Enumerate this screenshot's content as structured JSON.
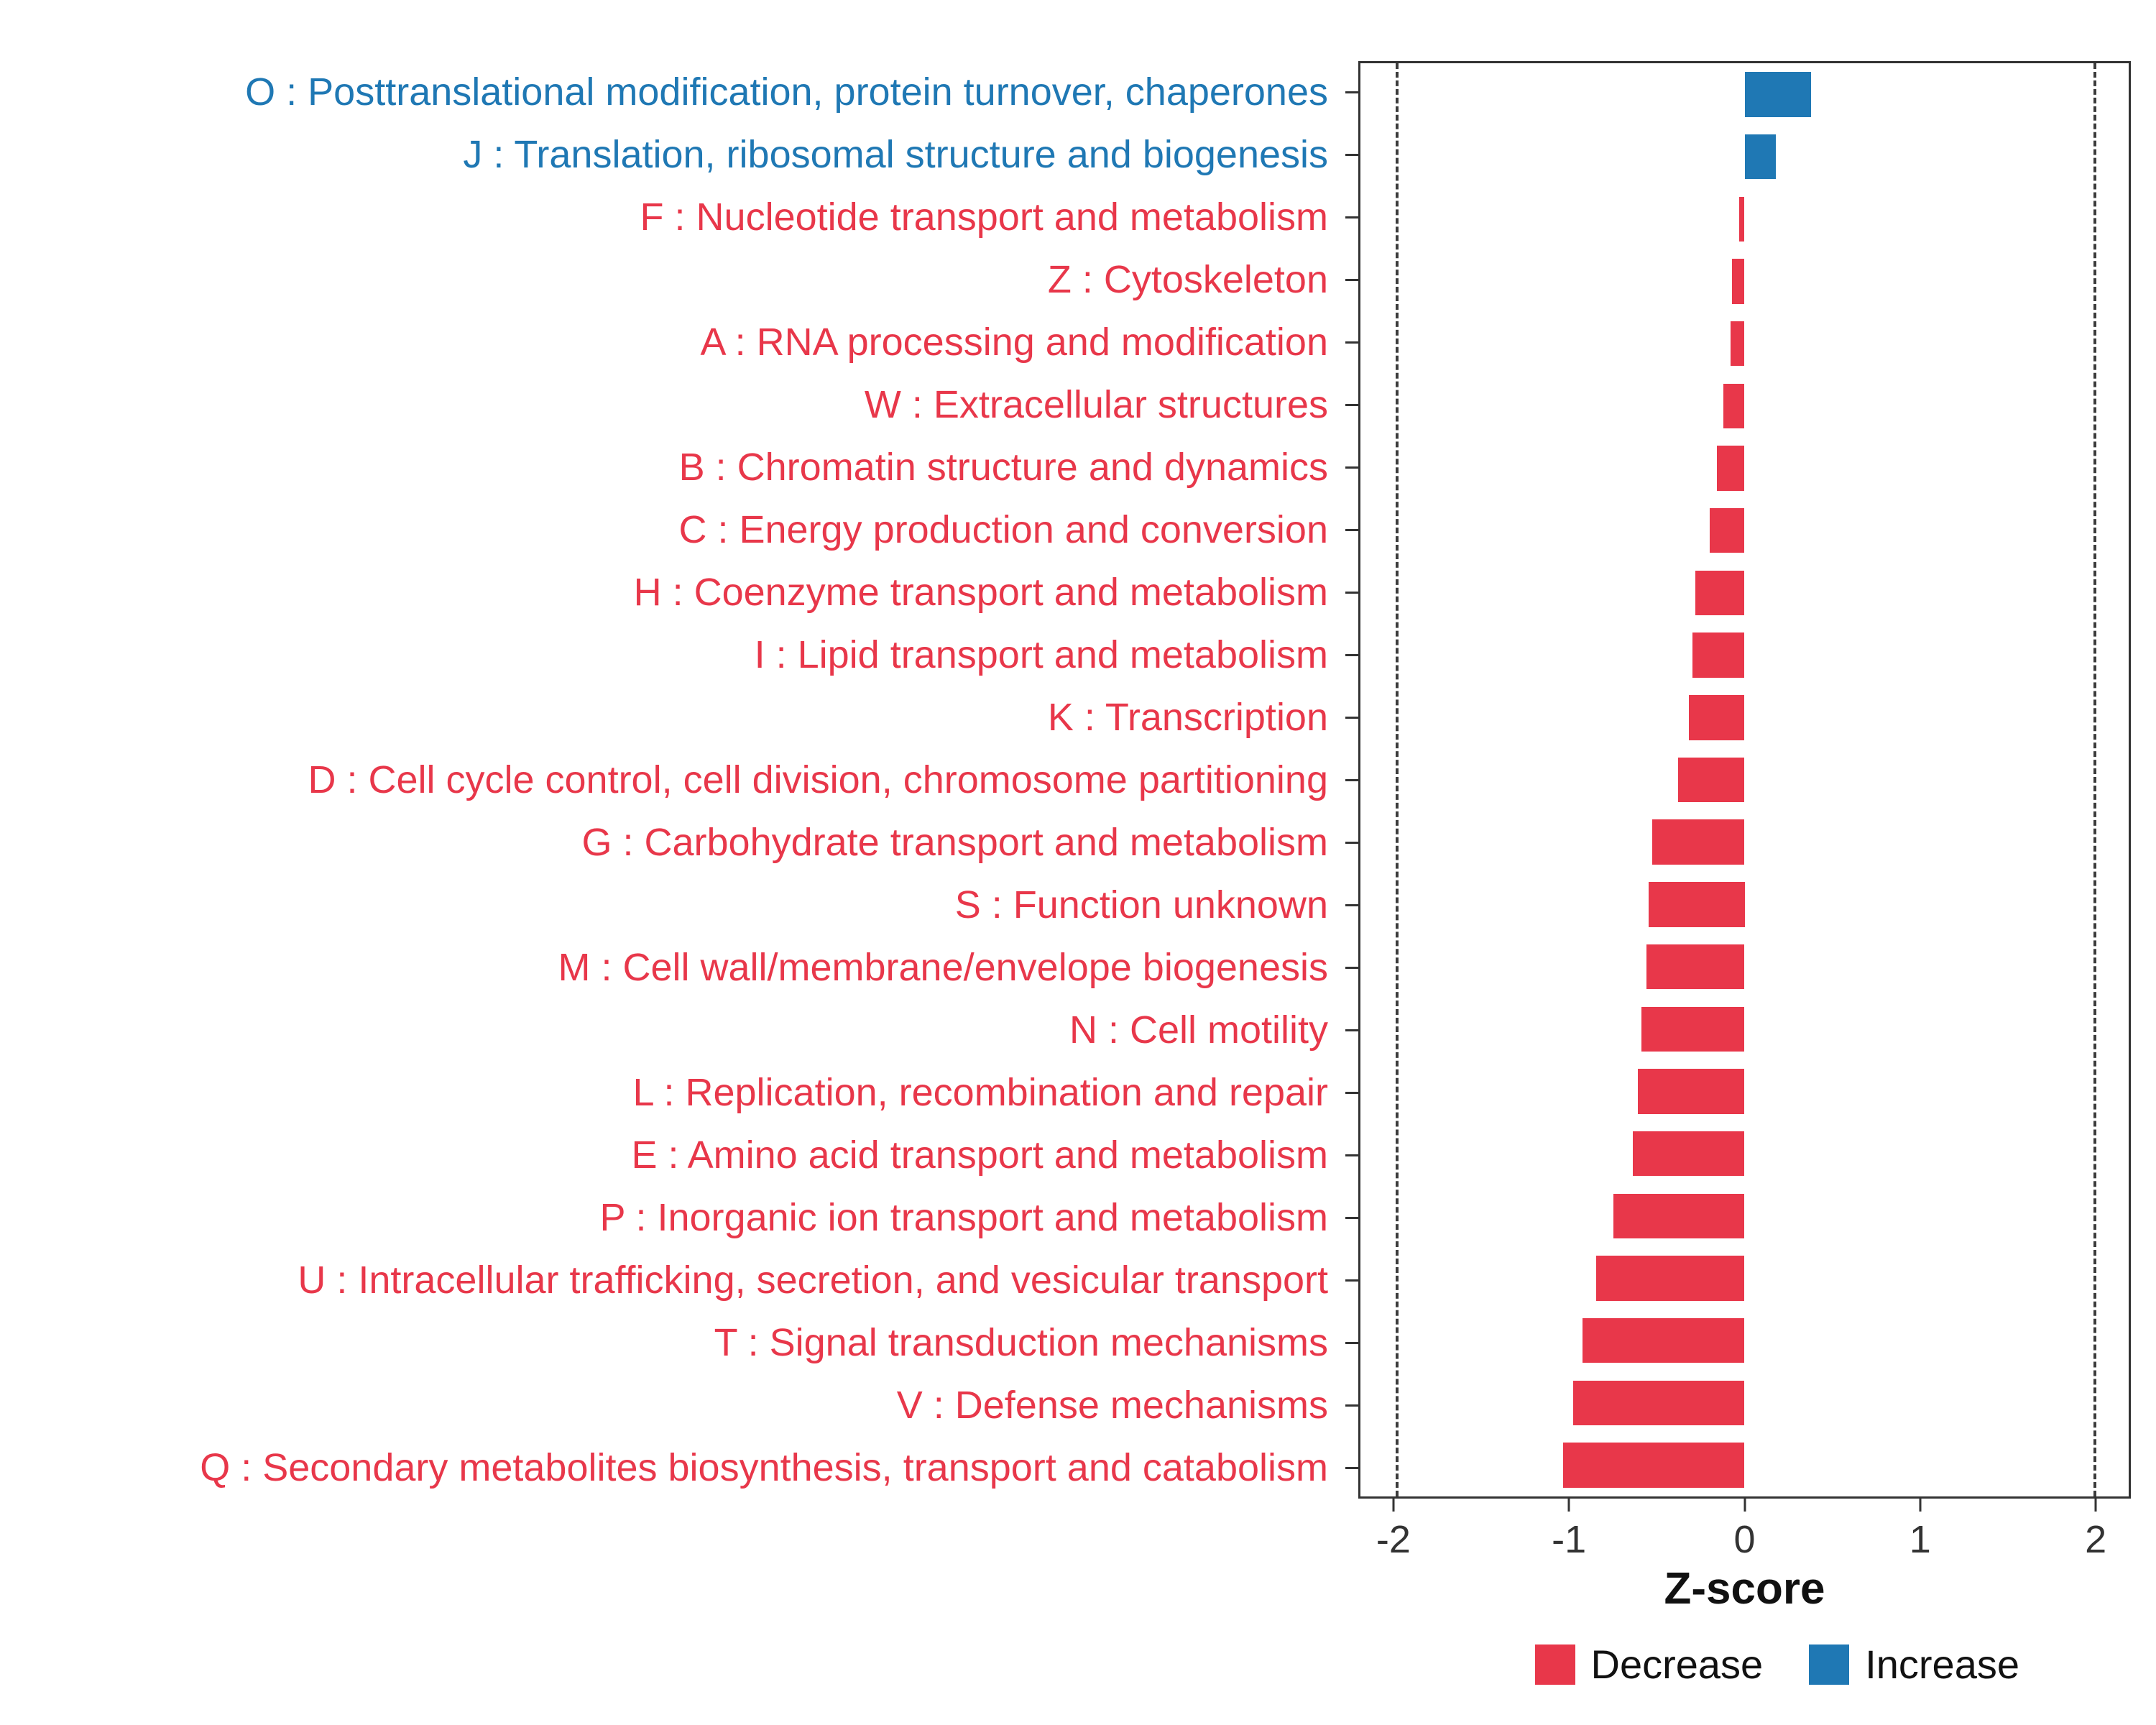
{
  "chart_data": {
    "type": "bar",
    "orientation": "horizontal",
    "title": "",
    "xlabel": "Z-score",
    "xlim": [
      -2.2,
      2.2
    ],
    "xticks": [
      -2,
      -1,
      0,
      1,
      2
    ],
    "reference_lines": [
      -2,
      2
    ],
    "grid": false,
    "legend_position": "bottom-right",
    "categories": [
      "O : Posttranslational modification, protein turnover, chaperones",
      "J : Translation, ribosomal structure and biogenesis",
      "F : Nucleotide transport and metabolism",
      "Z : Cytoskeleton",
      "A : RNA processing and modification",
      "W : Extracellular structures",
      "B : Chromatin structure and dynamics",
      "C : Energy production and conversion",
      "H : Coenzyme transport and metabolism",
      "I : Lipid transport and metabolism",
      "K : Transcription",
      "D : Cell cycle control, cell division, chromosome partitioning",
      "G : Carbohydrate transport and metabolism",
      "S : Function unknown",
      "M : Cell wall/membrane/envelope biogenesis",
      "N : Cell motility",
      "L : Replication, recombination and repair",
      "E : Amino acid transport and metabolism",
      "P : Inorganic ion transport and metabolism",
      "U : Intracellular trafficking, secretion, and vesicular transport",
      "T : Signal transduction mechanisms",
      "V : Defense mechanisms",
      "Q : Secondary metabolites biosynthesis, transport and catabolism"
    ],
    "values": [
      0.38,
      0.18,
      -0.03,
      -0.07,
      -0.08,
      -0.12,
      -0.16,
      -0.2,
      -0.28,
      -0.3,
      -0.32,
      -0.38,
      -0.53,
      -0.55,
      -0.56,
      -0.59,
      -0.61,
      -0.64,
      -0.75,
      -0.85,
      -0.93,
      -0.98,
      -1.04
    ],
    "directions": [
      "increase",
      "increase",
      "decrease",
      "decrease",
      "decrease",
      "decrease",
      "decrease",
      "decrease",
      "decrease",
      "decrease",
      "decrease",
      "decrease",
      "decrease",
      "decrease",
      "decrease",
      "decrease",
      "decrease",
      "decrease",
      "decrease",
      "decrease",
      "decrease",
      "decrease",
      "decrease"
    ],
    "colors": {
      "decrease": "#E8374A",
      "increase": "#1F78B4"
    },
    "legend": [
      {
        "label": "Decrease",
        "color_key": "decrease"
      },
      {
        "label": "Increase",
        "color_key": "increase"
      }
    ]
  }
}
